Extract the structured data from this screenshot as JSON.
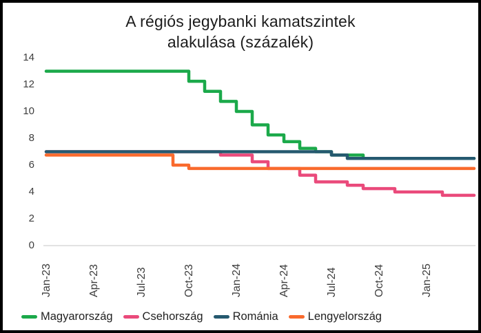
{
  "chart_data": {
    "type": "line",
    "step": true,
    "title": "A régiós jegybanki kamatszintek alakulása (százalék)",
    "title_lines": [
      "A régiós jegybanki kamatszintek",
      "alakulása (százalék)"
    ],
    "xlabel": "",
    "ylabel": "",
    "ylim": [
      0,
      14
    ],
    "y_ticks": [
      0,
      2,
      4,
      6,
      8,
      10,
      12,
      14
    ],
    "grid": false,
    "baseline_color": "#d9d9d9",
    "legend_position": "bottom",
    "x": [
      "Jan-23",
      "Feb-23",
      "Mar-23",
      "Apr-23",
      "May-23",
      "Jun-23",
      "Jul-23",
      "Aug-23",
      "Sep-23",
      "Oct-23",
      "Nov-23",
      "Dec-23",
      "Jan-24",
      "Feb-24",
      "Mar-24",
      "Apr-24",
      "May-24",
      "Jun-24",
      "Jul-24",
      "Aug-24",
      "Sep-24",
      "Oct-24",
      "Nov-24",
      "Dec-24",
      "Jan-25",
      "Feb-25",
      "Mar-25",
      "Apr-25"
    ],
    "x_tick_labels": [
      "Jan-23",
      "Apr-23",
      "Jul-23",
      "Oct-23",
      "Jan-24",
      "Apr-24",
      "Jul-24",
      "Oct-24",
      "Jan-25"
    ],
    "x_tick_indices": [
      0,
      3,
      6,
      9,
      12,
      15,
      18,
      21,
      24
    ],
    "series": [
      {
        "name": "Magyarország",
        "color": "#1ba94a",
        "values": [
          13,
          13,
          13,
          13,
          13,
          13,
          13,
          13,
          13,
          12.25,
          11.5,
          10.75,
          10,
          9,
          8.25,
          7.75,
          7.25,
          7,
          6.75,
          6.75,
          6.5,
          6.5,
          6.5,
          6.5,
          6.5,
          6.5,
          6.5,
          6.5
        ]
      },
      {
        "name": "Csehország",
        "color": "#ea4a7b",
        "values": [
          7,
          7,
          7,
          7,
          7,
          7,
          7,
          7,
          7,
          7,
          7,
          6.75,
          6.75,
          6.25,
          5.75,
          5.75,
          5.25,
          4.75,
          4.75,
          4.5,
          4.25,
          4.25,
          4,
          4,
          4,
          3.75,
          3.75,
          3.75
        ]
      },
      {
        "name": "Románia",
        "color": "#25596f",
        "values": [
          7,
          7,
          7,
          7,
          7,
          7,
          7,
          7,
          7,
          7,
          7,
          7,
          7,
          7,
          7,
          7,
          7,
          7,
          6.75,
          6.5,
          6.5,
          6.5,
          6.5,
          6.5,
          6.5,
          6.5,
          6.5,
          6.5
        ]
      },
      {
        "name": "Lengyelország",
        "color": "#f96a2d",
        "values": [
          6.75,
          6.75,
          6.75,
          6.75,
          6.75,
          6.75,
          6.75,
          6.75,
          6,
          5.75,
          5.75,
          5.75,
          5.75,
          5.75,
          5.75,
          5.75,
          5.75,
          5.75,
          5.75,
          5.75,
          5.75,
          5.75,
          5.75,
          5.75,
          5.75,
          5.75,
          5.75,
          5.75
        ]
      }
    ]
  }
}
